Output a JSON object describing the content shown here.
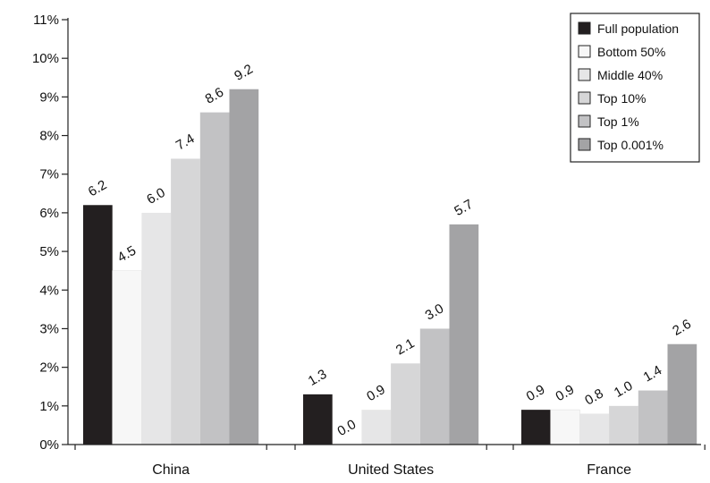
{
  "chart_data": {
    "type": "bar",
    "title": "",
    "xlabel": "",
    "ylabel": "",
    "categories": [
      "China",
      "United States",
      "France"
    ],
    "ylim": [
      0,
      11
    ],
    "yticks": [
      0,
      1,
      2,
      3,
      4,
      5,
      6,
      7,
      8,
      9,
      10,
      11
    ],
    "ytick_labels": [
      "0%",
      "1%",
      "2%",
      "3%",
      "4%",
      "5%",
      "6%",
      "7%",
      "8%",
      "9%",
      "10%",
      "11%"
    ],
    "grid": false,
    "legend_position": "top-right",
    "series": [
      {
        "name": "Full population",
        "color": "#231f20",
        "values": [
          6.2,
          1.3,
          0.9
        ],
        "labels": [
          "6.2",
          "1.3",
          "0.9"
        ]
      },
      {
        "name": "Bottom 50%",
        "color": "#f7f7f7",
        "values": [
          4.5,
          0.0,
          0.9
        ],
        "labels": [
          "4.5",
          "0.0",
          "0.9"
        ]
      },
      {
        "name": "Middle 40%",
        "color": "#e6e6e7",
        "values": [
          6.0,
          0.9,
          0.8
        ],
        "labels": [
          "6.0",
          "0.9",
          "0.8"
        ]
      },
      {
        "name": "Top 10%",
        "color": "#d6d6d7",
        "values": [
          7.4,
          2.1,
          1.0
        ],
        "labels": [
          "7.4",
          "2.1",
          "1.0"
        ]
      },
      {
        "name": "Top 1%",
        "color": "#c2c2c4",
        "values": [
          8.6,
          3.0,
          1.4
        ],
        "labels": [
          "8.6",
          "3.0",
          "1.4"
        ]
      },
      {
        "name": "Top 0.001%",
        "color": "#a3a3a5",
        "values": [
          9.2,
          5.7,
          2.6
        ],
        "labels": [
          "9.2",
          "5.7",
          "2.6"
        ]
      }
    ]
  }
}
